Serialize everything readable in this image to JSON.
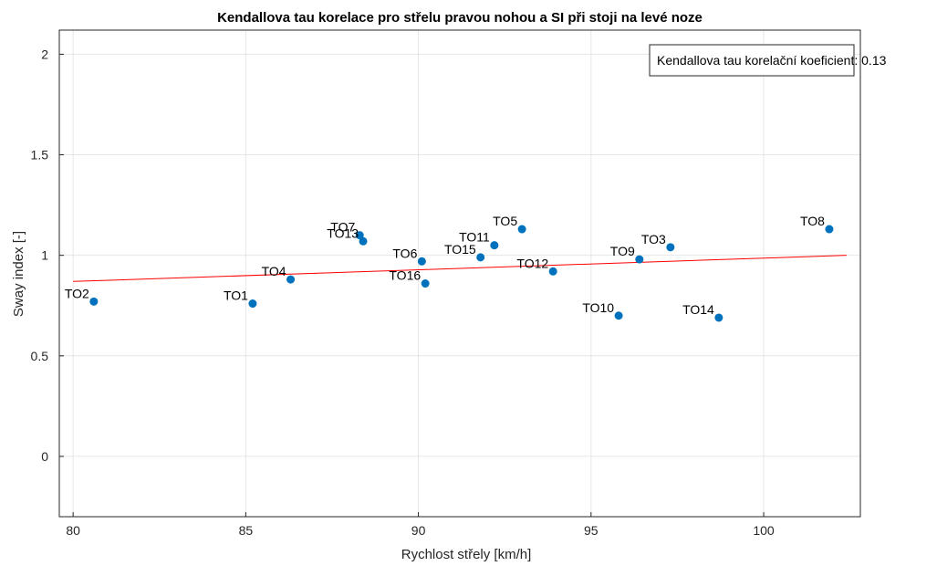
{
  "chart_data": {
    "type": "scatter",
    "title": "Kendallova tau korelace pro střelu pravou nohou a SI při stoji na levé noze",
    "xlabel": "Rychlost střely [km/h]",
    "ylabel": "Sway index [-]",
    "xlim": [
      79.6,
      102.8
    ],
    "ylim": [
      -0.3,
      2.12
    ],
    "xticks": [
      80,
      85,
      90,
      95,
      100
    ],
    "yticks": [
      0,
      0.5,
      1,
      1.5,
      2
    ],
    "xtick_labels": [
      "80",
      "85",
      "90",
      "95",
      "100"
    ],
    "ytick_labels": [
      "0",
      "0.5",
      "1",
      "1.5",
      "2"
    ],
    "grid": true,
    "point_color": "#0072BD",
    "fit_color": "#ff0000",
    "points": [
      {
        "label": "TO1",
        "x": 85.2,
        "y": 0.76
      },
      {
        "label": "TO2",
        "x": 80.6,
        "y": 0.77
      },
      {
        "label": "TO3",
        "x": 97.3,
        "y": 1.04
      },
      {
        "label": "TO4",
        "x": 86.3,
        "y": 0.88
      },
      {
        "label": "TO5",
        "x": 93.0,
        "y": 1.13
      },
      {
        "label": "TO6",
        "x": 90.1,
        "y": 0.97
      },
      {
        "label": "TO7",
        "x": 88.3,
        "y": 1.1
      },
      {
        "label": "TO8",
        "x": 101.9,
        "y": 1.13
      },
      {
        "label": "TO9",
        "x": 96.4,
        "y": 0.98
      },
      {
        "label": "TO10",
        "x": 95.8,
        "y": 0.7
      },
      {
        "label": "TO11",
        "x": 92.2,
        "y": 1.05
      },
      {
        "label": "TO12",
        "x": 93.9,
        "y": 0.92
      },
      {
        "label": "TO13",
        "x": 88.4,
        "y": 1.07
      },
      {
        "label": "TO14",
        "x": 98.7,
        "y": 0.69
      },
      {
        "label": "TO15",
        "x": 91.8,
        "y": 0.99
      },
      {
        "label": "TO16",
        "x": 90.2,
        "y": 0.86
      }
    ],
    "fit_line": {
      "x": [
        80.0,
        102.4
      ],
      "y": [
        0.87,
        1.0
      ]
    },
    "legend": {
      "text": "Kendallova tau korelační koeficient: 0.13",
      "position": "top-right"
    }
  }
}
